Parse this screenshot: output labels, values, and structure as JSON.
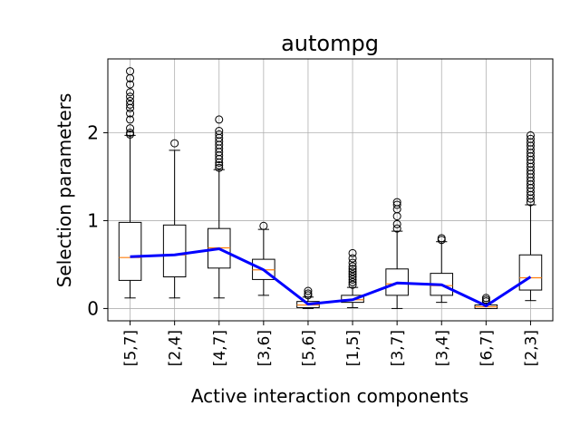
{
  "chart_data": {
    "type": "boxplot",
    "title": "autompg",
    "xlabel": "Active interaction components",
    "ylabel": "Selection parameters",
    "categories": [
      "[5,7]",
      "[2,4]",
      "[4,7]",
      "[3,6]",
      "[5,6]",
      "[1,5]",
      "[3,7]",
      "[3,4]",
      "[6,7]",
      "[2,3]"
    ],
    "ylim": [
      -0.14,
      2.84
    ],
    "yticks": [
      0,
      1,
      2
    ],
    "grid": true,
    "boxes": [
      {
        "whislo": 0.12,
        "q1": 0.32,
        "med": 0.58,
        "q3": 0.98,
        "whishi": 1.97,
        "fliers": [
          1.98,
          2.0,
          2.05,
          2.15,
          2.22,
          2.28,
          2.32,
          2.36,
          2.41,
          2.46,
          2.55,
          2.62,
          2.7
        ]
      },
      {
        "whislo": 0.12,
        "q1": 0.36,
        "med": 0.61,
        "q3": 0.95,
        "whishi": 1.8,
        "fliers": [
          1.88
        ]
      },
      {
        "whislo": 0.12,
        "q1": 0.46,
        "med": 0.69,
        "q3": 0.91,
        "whishi": 1.58,
        "fliers": [
          1.6,
          1.63,
          1.66,
          1.7,
          1.74,
          1.78,
          1.82,
          1.86,
          1.9,
          1.94,
          1.98,
          2.02,
          2.15
        ]
      },
      {
        "whislo": 0.15,
        "q1": 0.33,
        "med": 0.44,
        "q3": 0.56,
        "whishi": 0.9,
        "fliers": [
          0.94
        ]
      },
      {
        "whislo": 0.0,
        "q1": 0.01,
        "med": 0.04,
        "q3": 0.08,
        "whishi": 0.13,
        "fliers": [
          0.15,
          0.17,
          0.2
        ]
      },
      {
        "whislo": 0.01,
        "q1": 0.07,
        "med": 0.1,
        "q3": 0.15,
        "whishi": 0.24,
        "fliers": [
          0.27,
          0.3,
          0.33,
          0.36,
          0.39,
          0.42,
          0.45,
          0.48,
          0.52,
          0.57,
          0.63
        ]
      },
      {
        "whislo": 0.0,
        "q1": 0.15,
        "med": 0.28,
        "q3": 0.45,
        "whishi": 0.88,
        "fliers": [
          0.91,
          0.96,
          1.05,
          1.13,
          1.18,
          1.21
        ]
      },
      {
        "whislo": 0.07,
        "q1": 0.15,
        "med": 0.26,
        "q3": 0.4,
        "whishi": 0.76,
        "fliers": [
          0.78,
          0.8
        ]
      },
      {
        "whislo": 0.0,
        "q1": 0.0,
        "med": 0.02,
        "q3": 0.04,
        "whishi": 0.06,
        "fliers": [
          0.08,
          0.1,
          0.12
        ]
      },
      {
        "whislo": 0.09,
        "q1": 0.21,
        "med": 0.35,
        "q3": 0.61,
        "whishi": 1.18,
        "fliers": [
          1.21,
          1.25,
          1.29,
          1.33,
          1.37,
          1.41,
          1.45,
          1.49,
          1.53,
          1.57,
          1.61,
          1.65,
          1.69,
          1.73,
          1.77,
          1.81,
          1.85,
          1.89,
          1.93,
          1.97
        ]
      }
    ],
    "mean_line": {
      "color": "#0000ff",
      "values": [
        0.59,
        0.61,
        0.68,
        0.44,
        0.05,
        0.1,
        0.29,
        0.27,
        0.03,
        0.36
      ]
    },
    "colors": {
      "median": "#ff7f0e",
      "box": "#000000",
      "grid": "#b0b0b0"
    }
  }
}
